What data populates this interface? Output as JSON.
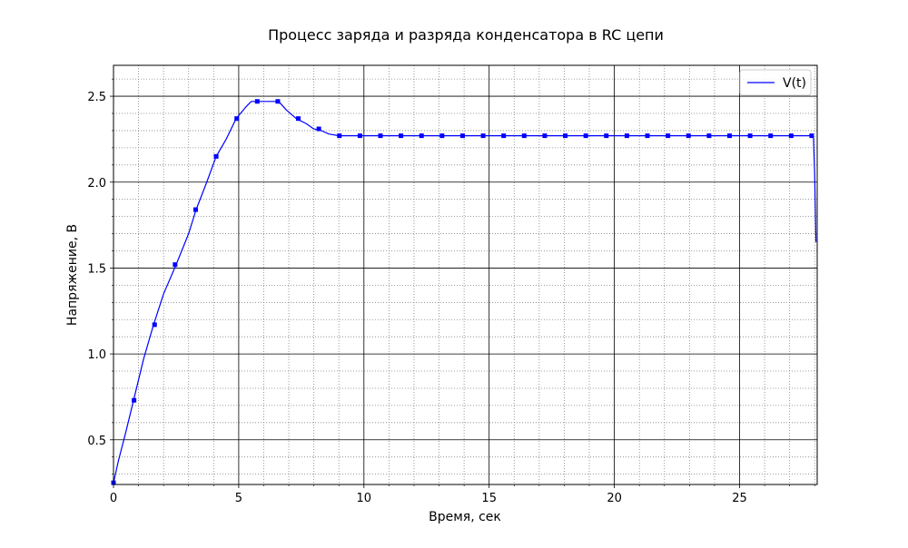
{
  "chart_data": {
    "type": "line",
    "title": "Процесс заряда и разряда конденсатора в RC цепи",
    "xlabel": "Время, сек",
    "ylabel": "Напряжение, В",
    "xlim": [
      0,
      28.1
    ],
    "ylim": [
      0.24,
      2.68
    ],
    "xticks": [
      0,
      5,
      10,
      15,
      20,
      25
    ],
    "xtick_labels": [
      "0",
      "5",
      "10",
      "15",
      "20",
      "25"
    ],
    "yticks": [
      0.5,
      1.0,
      1.5,
      2.0,
      2.5
    ],
    "ytick_labels": [
      "0.5",
      "1.0",
      "1.5",
      "2.0",
      "2.5"
    ],
    "x_minor_step": 1,
    "y_minor_step": 0.1,
    "grid": true,
    "legend_position": "top-right",
    "series": [
      {
        "name": "V(t)",
        "color": "#0000ff",
        "x": [
          0,
          0.2,
          0.5,
          0.8,
          1.2,
          1.6,
          2.0,
          2.5,
          3.0,
          3.3,
          3.7,
          4.1,
          4.5,
          4.9,
          5.3,
          5.5,
          6.2,
          6.6,
          6.9,
          7.3,
          7.7,
          8.0,
          8.3,
          8.6,
          9.0,
          9.8,
          12.0,
          16.0,
          20.0,
          24.0,
          27.5,
          27.9,
          27.95,
          28.0,
          28.05
        ],
        "y": [
          0.25,
          0.38,
          0.55,
          0.73,
          0.97,
          1.17,
          1.35,
          1.52,
          1.7,
          1.84,
          1.99,
          2.15,
          2.25,
          2.37,
          2.44,
          2.47,
          2.47,
          2.47,
          2.42,
          2.37,
          2.34,
          2.31,
          2.3,
          2.28,
          2.27,
          2.27,
          2.27,
          2.27,
          2.27,
          2.27,
          2.27,
          2.27,
          2.26,
          2.05,
          1.65
        ]
      }
    ],
    "markers": {
      "shape": "square",
      "x": [
        0,
        0.82,
        1.64,
        2.46,
        3.28,
        4.1,
        4.92,
        5.74,
        6.56,
        7.38,
        8.2,
        9.02,
        9.84,
        10.66,
        11.48,
        12.3,
        13.12,
        13.94,
        14.76,
        15.58,
        16.4,
        17.22,
        18.04,
        18.86,
        19.68,
        20.5,
        21.32,
        22.14,
        22.96,
        23.78,
        24.6,
        25.42,
        26.24,
        27.06,
        27.88
      ],
      "y": [
        0.25,
        0.73,
        1.17,
        1.52,
        1.84,
        2.15,
        2.37,
        2.47,
        2.47,
        2.37,
        2.31,
        2.27,
        2.27,
        2.27,
        2.27,
        2.27,
        2.27,
        2.27,
        2.27,
        2.27,
        2.27,
        2.27,
        2.27,
        2.27,
        2.27,
        2.27,
        2.27,
        2.27,
        2.27,
        2.27,
        2.27,
        2.27,
        2.27,
        2.27,
        2.27
      ]
    }
  }
}
